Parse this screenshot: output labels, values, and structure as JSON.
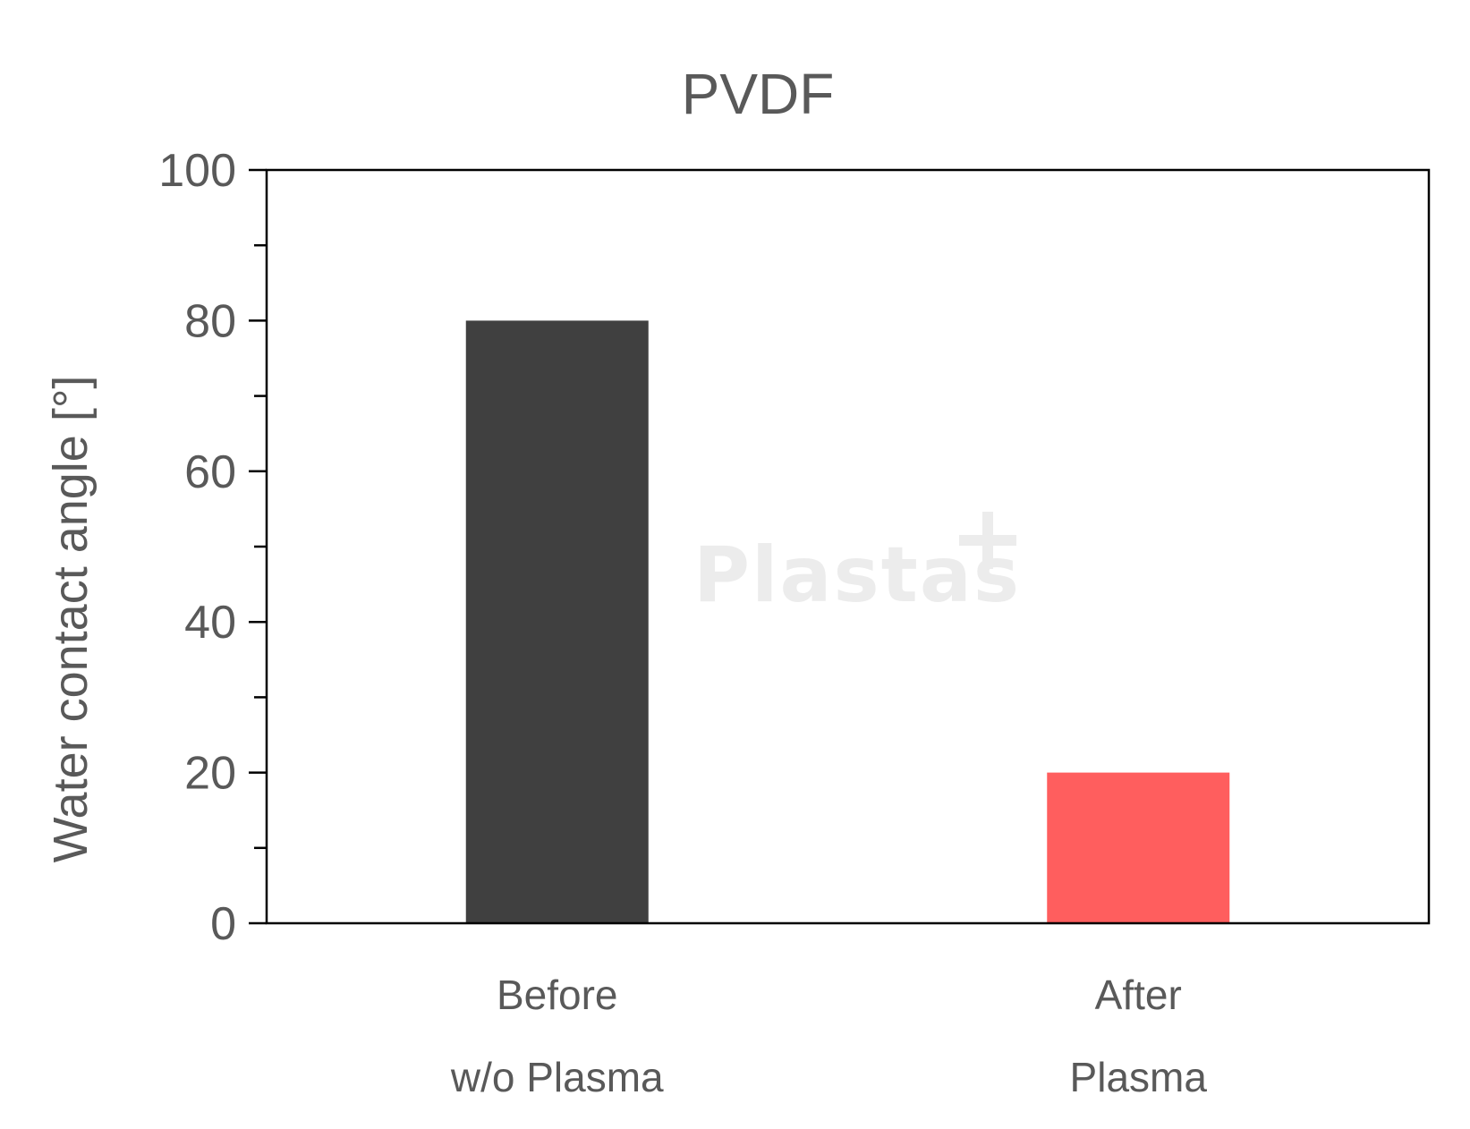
{
  "chart_data": {
    "type": "bar",
    "title": "PVDF",
    "ylabel": "Water contact angle [°]",
    "xlabel": "",
    "categories": [
      [
        "Before",
        "w/o Plasma"
      ],
      [
        "After",
        "Plasma"
      ]
    ],
    "values": [
      80,
      20
    ],
    "bar_colors": [
      "#404040",
      "#ff5e5e"
    ],
    "ylim": [
      0,
      100
    ],
    "yticks": [
      "0",
      "20",
      "40",
      "60",
      "80",
      "100"
    ],
    "minor_tick_step": 10,
    "grid": false,
    "legend": "none"
  },
  "watermark": {
    "text": "Plastas",
    "color": "#ececec"
  }
}
